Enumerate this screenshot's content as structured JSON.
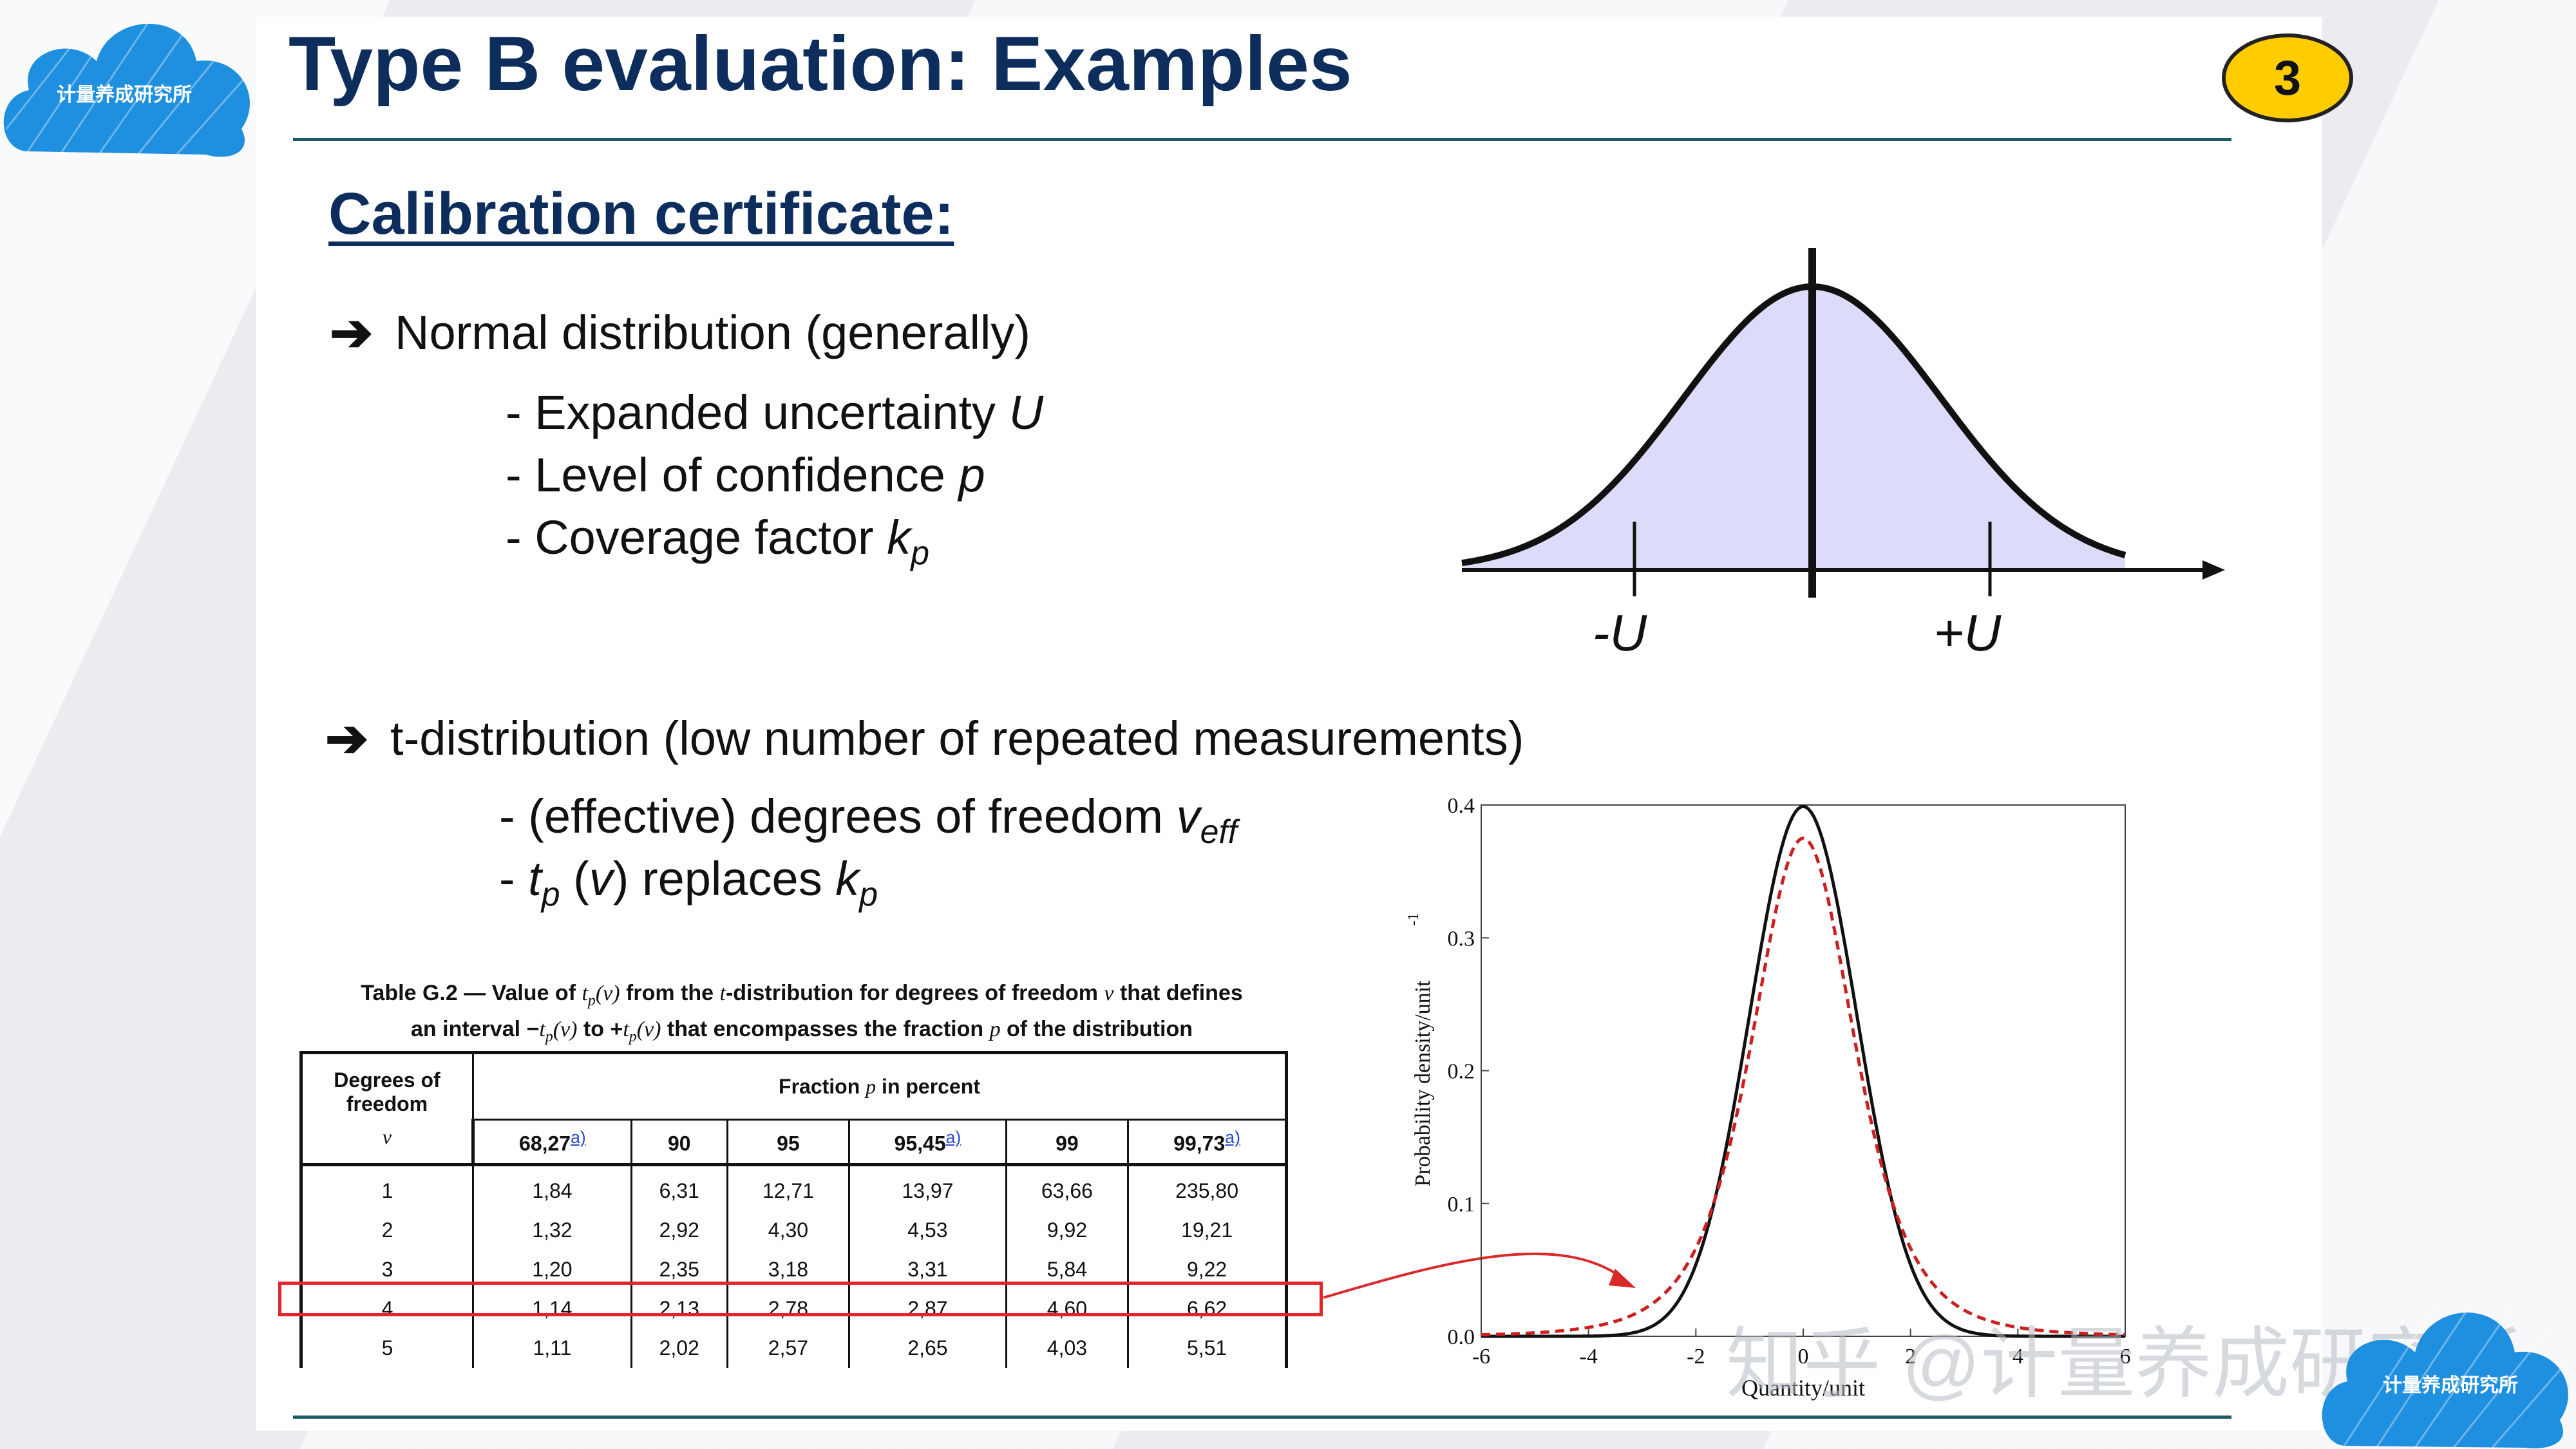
{
  "slide": {
    "title": "Type B evaluation: Examples",
    "page_number": "3",
    "subtitle": "Calibration certificate:"
  },
  "logo": {
    "text": "计量养成研究所"
  },
  "bullets": {
    "normal": {
      "text": "Normal distribution (generally)",
      "items": [
        {
          "text": "- Expanded uncertainty ",
          "var": "U",
          "subscript": ""
        },
        {
          "text": "- Level of confidence ",
          "var": "p",
          "subscript": ""
        },
        {
          "text": "- Coverage factor ",
          "var": "k",
          "subscript": "p"
        }
      ]
    },
    "t": {
      "text": "t-distribution (low number of repeated measurements)",
      "items": [
        {
          "text": "- (effective) degrees of freedom ",
          "var": "v",
          "subscript": "eff"
        },
        {
          "pre_var": "t",
          "pre_sub": "p",
          "mid": " (",
          "mid_var": "v",
          "post": ") replaces ",
          "var": "k",
          "subscript": "p"
        }
      ]
    }
  },
  "normal_figure": {
    "label_minus": "-U",
    "label_plus": "+U"
  },
  "table": {
    "caption_line1_a": "Table G.2 — Value of ",
    "caption_line1_b": "t",
    "caption_line1_c": "p",
    "caption_line1_d": "(v)",
    "caption_line1_e": " from the ",
    "caption_line1_f": "t",
    "caption_line1_g": "-distribution for degrees of freedom ",
    "caption_line1_h": "v",
    "caption_line1_i": " that defines",
    "caption_line2_a": "an interval −",
    "caption_line2_b": "t",
    "caption_line2_c": "p",
    "caption_line2_d": "(v)",
    "caption_line2_e": " to +",
    "caption_line2_f": "t",
    "caption_line2_g": "p",
    "caption_line2_h": "(v)",
    "caption_line2_i": " that encompasses the fraction ",
    "caption_line2_j": "p",
    "caption_line2_k": " of the distribution",
    "col_header_dof_line1": "Degrees of",
    "col_header_dof_line2": "freedom",
    "col_header_dof_symbol": "v",
    "col_header_fraction_a": "Fraction ",
    "col_header_fraction_b": "p",
    "col_header_fraction_c": " in percent",
    "fractions": [
      {
        "value": "68,27",
        "note": "a)"
      },
      {
        "value": "90",
        "note": ""
      },
      {
        "value": "95",
        "note": ""
      },
      {
        "value": "95,45",
        "note": "a)"
      },
      {
        "value": "99",
        "note": ""
      },
      {
        "value": "99,73",
        "note": "a)"
      }
    ],
    "rows": [
      {
        "dof": "1",
        "vals": [
          "1,84",
          "6,31",
          "12,71",
          "13,97",
          "63,66",
          "235,80"
        ]
      },
      {
        "dof": "2",
        "vals": [
          "1,32",
          "2,92",
          "4,30",
          "4,53",
          "9,92",
          "19,21"
        ]
      },
      {
        "dof": "3",
        "vals": [
          "1,20",
          "2,35",
          "3,18",
          "3,31",
          "5,84",
          "9,22"
        ]
      },
      {
        "dof": "4",
        "vals": [
          "1,14",
          "2,13",
          "2,78",
          "2,87",
          "4,60",
          "6,62"
        ]
      },
      {
        "dof": "5",
        "vals": [
          "1,11",
          "2,02",
          "2,57",
          "2,65",
          "4,03",
          "5,51"
        ]
      }
    ],
    "highlighted_row_dof": "4"
  },
  "pdf_plot": {
    "ylabel": "Probability density/unit",
    "ylabel_sup": "-1",
    "xlabel": "Quantity/unit",
    "xticks": [
      "-6",
      "-4",
      "-2",
      "0",
      "2",
      "4",
      "6"
    ],
    "yticks": [
      "0.0",
      "0.1",
      "0.2",
      "0.3",
      "0.4"
    ],
    "xlim": [
      -6,
      6
    ],
    "ylim": [
      0,
      0.4
    ],
    "series": [
      {
        "style": "solid",
        "color": "#111111",
        "dof": null
      },
      {
        "style": "dashed",
        "color": "#cc1f1f",
        "dof": 4
      }
    ]
  },
  "watermark": {
    "text": "知乎 @计量养成研究所"
  },
  "colors": {
    "title": "#0d2d5c",
    "rule": "#1d5a6a",
    "badge": "#ffcc00",
    "highlight": "#e0262b",
    "curve_fill": "#dcdcfa",
    "cloud": "#1f8fe0"
  }
}
